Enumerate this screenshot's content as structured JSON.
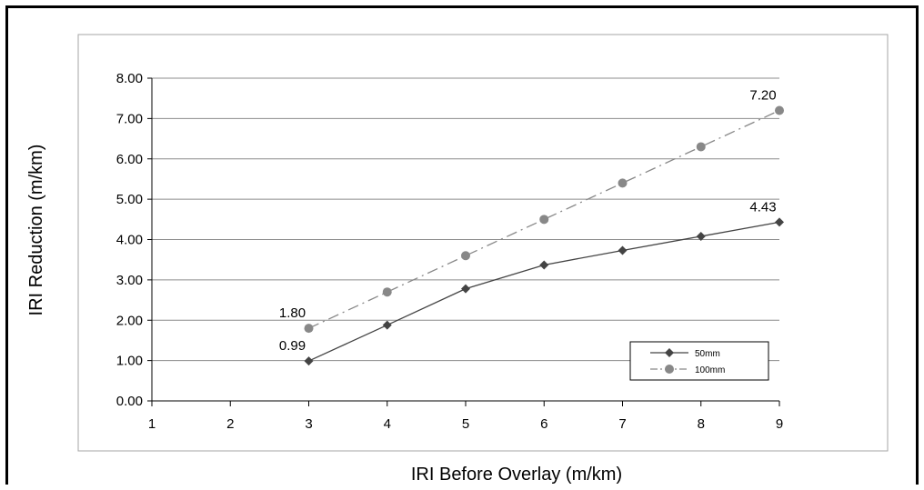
{
  "chart_data": {
    "type": "line",
    "title": "",
    "xlabel": "IRI  Before Overlay (m/km)",
    "ylabel": "IRI Reduction (m/km)",
    "xlim": [
      1,
      9
    ],
    "ylim": [
      0,
      8
    ],
    "x_ticks": [
      "1",
      "2",
      "3",
      "4",
      "5",
      "6",
      "7",
      "8",
      "9"
    ],
    "y_ticks": [
      "0.00",
      "1.00",
      "2.00",
      "3.00",
      "4.00",
      "5.00",
      "6.00",
      "7.00",
      "8.00"
    ],
    "grid": "horizontal",
    "legend_position": "bottom-right",
    "series": [
      {
        "name": "50mm",
        "color": "#444444",
        "line": "solid",
        "marker": "diamond",
        "x": [
          3,
          4,
          5,
          6,
          7,
          8,
          9
        ],
        "y": [
          0.99,
          1.88,
          2.78,
          3.37,
          3.73,
          4.08,
          4.43
        ],
        "labels": [
          {
            "x": 3,
            "y": 0.99,
            "text": "0.99"
          },
          {
            "x": 9,
            "y": 4.43,
            "text": "4.43"
          }
        ]
      },
      {
        "name": "100mm",
        "color": "#888888",
        "line": "dashdot",
        "marker": "circle",
        "x": [
          3,
          4,
          5,
          6,
          7,
          8,
          9
        ],
        "y": [
          1.8,
          2.7,
          3.6,
          4.5,
          5.4,
          6.3,
          7.2
        ],
        "labels": [
          {
            "x": 3,
            "y": 1.8,
            "text": "1.80"
          },
          {
            "x": 9,
            "y": 7.2,
            "text": "7.20"
          }
        ]
      }
    ]
  }
}
